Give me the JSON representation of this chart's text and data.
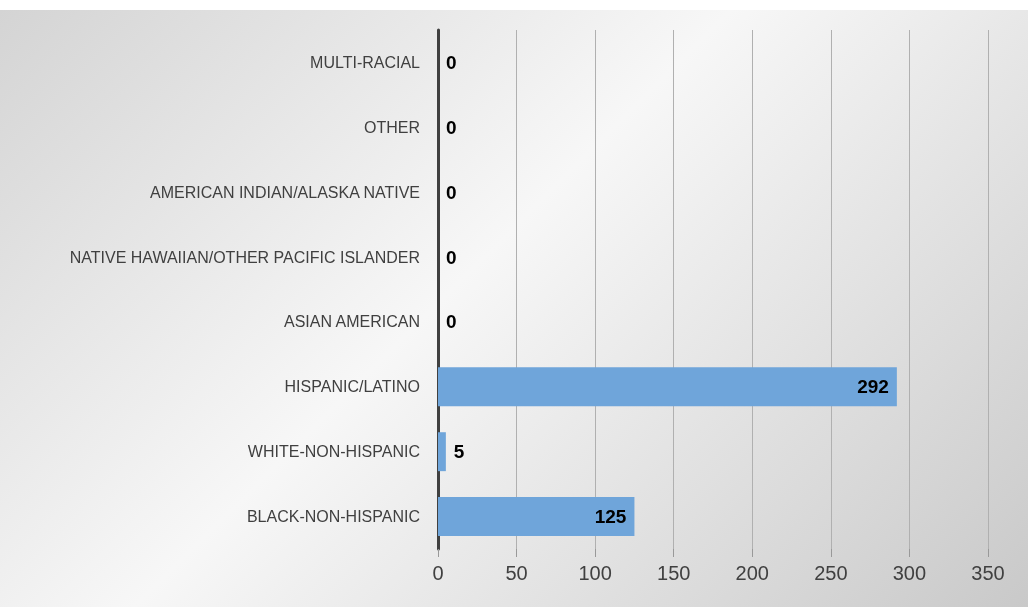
{
  "chart_data": {
    "type": "bar",
    "orientation": "horizontal",
    "categories": [
      "MULTI-RACIAL",
      "OTHER",
      "AMERICAN INDIAN/ALASKA NATIVE",
      "NATIVE HAWAIIAN/OTHER PACIFIC ISLANDER",
      "ASIAN AMERICAN",
      "HISPANIC/LATINO",
      "WHITE-NON-HISPANIC",
      "BLACK-NON-HISPANIC"
    ],
    "values": [
      0,
      0,
      0,
      0,
      0,
      292,
      5,
      125
    ],
    "color": "#6fa5da",
    "xlim": [
      0,
      350
    ],
    "xticks": [
      0,
      50,
      100,
      150,
      200,
      250,
      300,
      350
    ],
    "grid": "x",
    "data_labels": true
  }
}
